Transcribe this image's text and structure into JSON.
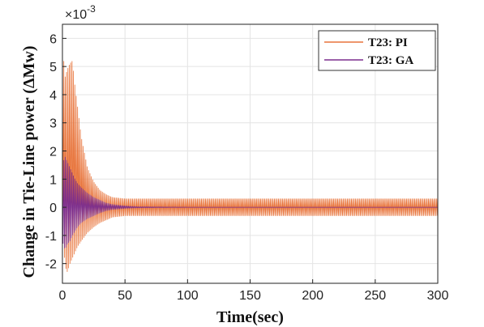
{
  "chart_data": {
    "type": "line",
    "title": "",
    "xlabel": "Time(sec)",
    "ylabel": "Change in  Tie-Line power (ΔMw)",
    "y_exponent_label": "×10",
    "y_exponent_power": "-3",
    "xlim": [
      0,
      300
    ],
    "ylim": [
      -2.7,
      6.5
    ],
    "x_ticks": [
      "0",
      "50",
      "100",
      "150",
      "200",
      "250",
      "300"
    ],
    "y_ticks": [
      "-2",
      "-1",
      "0",
      "1",
      "2",
      "3",
      "4",
      "5",
      "6"
    ],
    "grid": true,
    "legend_placement": "top-right",
    "series": [
      {
        "name": "T23: PI",
        "color": "#e8743b",
        "envelope": {
          "x": [
            0,
            2,
            4,
            6,
            8,
            10,
            12,
            15,
            20,
            25,
            30,
            35,
            40,
            50,
            60,
            80,
            100,
            150,
            200,
            250,
            300
          ],
          "upper": [
            5.9,
            4.6,
            4.9,
            5.1,
            5.2,
            4.3,
            3.6,
            2.5,
            1.4,
            0.9,
            0.6,
            0.45,
            0.35,
            0.3,
            0.3,
            0.3,
            0.3,
            0.3,
            0.3,
            0.3,
            0.3
          ],
          "lower": [
            -0.3,
            -2.1,
            -2.3,
            -2.0,
            -1.8,
            -1.6,
            -1.4,
            -1.2,
            -0.9,
            -0.7,
            -0.55,
            -0.45,
            -0.35,
            -0.3,
            -0.3,
            -0.3,
            -0.3,
            -0.3,
            -0.3,
            -0.3,
            -0.3
          ]
        }
      },
      {
        "name": "T23: GA",
        "color": "#7b2d8e",
        "envelope": {
          "x": [
            0,
            2,
            4,
            6,
            8,
            10,
            12,
            15,
            20,
            25,
            30,
            35,
            40,
            50,
            60,
            80,
            100,
            150,
            200,
            250,
            300
          ],
          "upper": [
            1.5,
            1.8,
            1.6,
            1.4,
            1.2,
            1.0,
            0.85,
            0.7,
            0.5,
            0.35,
            0.25,
            0.15,
            0.1,
            0.05,
            0.02,
            0.01,
            0.0,
            0.0,
            0.0,
            0.0,
            0.0
          ],
          "lower": [
            -1.2,
            -1.5,
            -1.3,
            -1.2,
            -1.0,
            -0.85,
            -0.7,
            -0.55,
            -0.4,
            -0.3,
            -0.2,
            -0.12,
            -0.08,
            -0.04,
            -0.02,
            -0.01,
            0.0,
            0.0,
            0.0,
            0.0,
            0.0
          ]
        }
      }
    ]
  }
}
